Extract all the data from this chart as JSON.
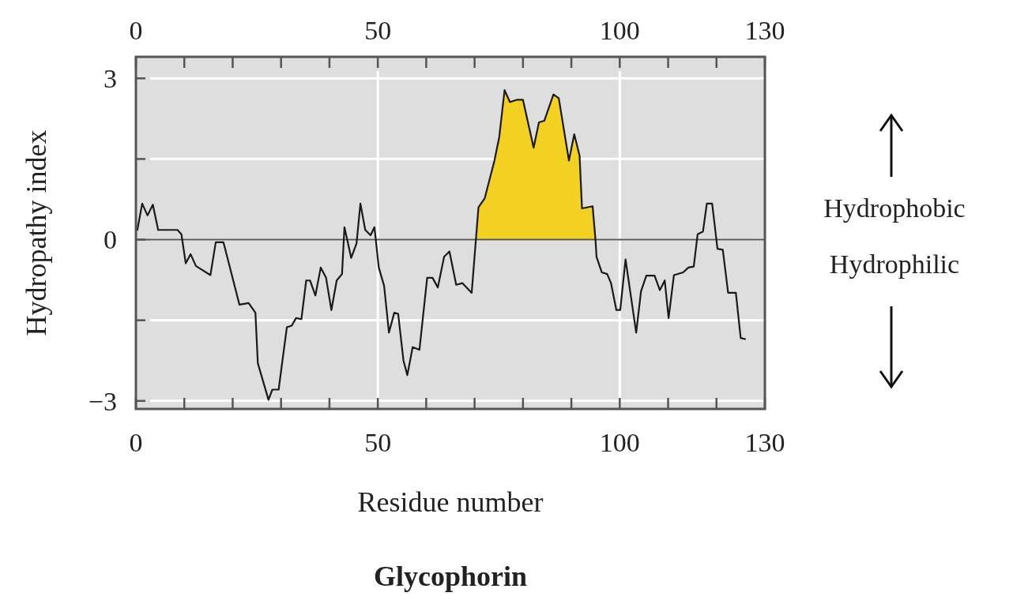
{
  "chart_data": {
    "type": "line",
    "title": "Glycophorin",
    "xlabel": "Residue number",
    "ylabel": "Hydropathy index",
    "annotations": [
      "Hydrophobic",
      "Hydrophilic"
    ],
    "xlim": [
      0,
      130
    ],
    "ylim": [
      -3.15,
      3.4
    ],
    "xticks": [
      0,
      {
        "value": 10,
        "label": null
      },
      {
        "value": 20,
        "label": null
      },
      {
        "value": 30,
        "label": null
      },
      {
        "value": 40,
        "label": null
      },
      50,
      {
        "value": 60,
        "label": null
      },
      {
        "value": 70,
        "label": null
      },
      {
        "value": 80,
        "label": null
      },
      {
        "value": 90,
        "label": null
      },
      100,
      {
        "value": 110,
        "label": null
      },
      {
        "value": 120,
        "label": null
      },
      130
    ],
    "x2lim": [
      0,
      130
    ],
    "x2ticks": [
      0,
      {
        "value": 10,
        "label": null
      },
      {
        "value": 20,
        "label": null
      },
      {
        "value": 30,
        "label": null
      },
      {
        "value": 40,
        "label": null
      },
      50,
      {
        "value": 60,
        "label": null
      },
      {
        "value": 70,
        "label": null
      },
      {
        "value": 80,
        "label": null
      },
      {
        "value": 90,
        "label": null
      },
      100,
      {
        "value": 110,
        "label": null
      },
      {
        "value": 120,
        "label": null
      },
      130
    ],
    "yticks": [
      -3,
      {
        "value": -1.5,
        "label": null
      },
      0,
      {
        "value": 1.5,
        "label": null
      },
      3
    ],
    "grid": true,
    "ref_lines": [
      {
        "axis": "y",
        "value": 0,
        "color": "#555555"
      }
    ],
    "series": [
      {
        "type": "area",
        "color": "#f2d123",
        "x": [
          70.3,
          70.8,
          72.1,
          74.1,
          75.1,
          76.2,
          77.3,
          78.7,
          80.0,
          82.2,
          83.3,
          84.4,
          86.3,
          87.4,
          89.5,
          90.6,
          91.7,
          92.2,
          94.4,
          95.0
        ],
        "values": [
          0,
          0.6,
          0.77,
          1.47,
          1.91,
          2.78,
          2.56,
          2.6,
          2.6,
          1.71,
          2.18,
          2.21,
          2.7,
          2.63,
          1.47,
          1.96,
          1.56,
          0.58,
          0.62,
          0
        ]
      },
      {
        "type": "line",
        "color": "#1a1a1a",
        "x": [
          0.3,
          1.3,
          2.4,
          3.5,
          4.6,
          8.6,
          9.4,
          10.3,
          11.3,
          12.4,
          15.4,
          16.5,
          18.1,
          21.4,
          23.3,
          24.7,
          25.2,
          27.4,
          28.2,
          29.5,
          31.2,
          32.2,
          33.1,
          34.2,
          35.2,
          36.0,
          37.1,
          38.2,
          39.3,
          40.4,
          41.5,
          42.6,
          43.1,
          44.5,
          45.6,
          46.4,
          47.4,
          48.5,
          49.3,
          50.2,
          51.3,
          52.3,
          53.4,
          54.2,
          55.3,
          56.1,
          57.2,
          58.6,
          60.2,
          61.3,
          62.4,
          63.7,
          64.8,
          66.2,
          67.5,
          69.4,
          70.8,
          72.1,
          74.1,
          75.1,
          76.2,
          77.3,
          78.7,
          80.0,
          82.2,
          83.3,
          84.4,
          86.3,
          87.4,
          89.5,
          90.6,
          91.7,
          92.2,
          94.4,
          95.0,
          95.2,
          96.3,
          97.4,
          98.2,
          99.3,
          100.1,
          101.2,
          103.4,
          104.4,
          105.5,
          107.2,
          108.3,
          109.3,
          110.1,
          111.2,
          113.1,
          114.2,
          115.3,
          116.1,
          117.2,
          118.0,
          119.1,
          120.2,
          121.3,
          122.4,
          124.0,
          125.0,
          125.9
        ],
        "values": [
          0.18,
          0.67,
          0.45,
          0.65,
          0.18,
          0.18,
          0.1,
          -0.44,
          -0.27,
          -0.49,
          -0.66,
          -0.05,
          -0.05,
          -1.21,
          -1.18,
          -1.36,
          -2.3,
          -2.98,
          -2.79,
          -2.79,
          -1.63,
          -1.6,
          -1.46,
          -1.48,
          -0.76,
          -0.76,
          -1.04,
          -0.52,
          -0.71,
          -1.31,
          -0.76,
          -0.64,
          0.23,
          -0.34,
          -0.07,
          0.67,
          0.18,
          0.08,
          0.23,
          -0.52,
          -0.86,
          -1.73,
          -1.36,
          -1.38,
          -2.25,
          -2.52,
          -2.0,
          -2.05,
          -0.71,
          -0.71,
          -0.89,
          -0.32,
          -0.22,
          -0.84,
          -0.81,
          -0.99,
          0.6,
          0.77,
          1.47,
          1.91,
          2.78,
          2.56,
          2.6,
          2.6,
          1.71,
          2.18,
          2.21,
          2.7,
          2.63,
          1.47,
          1.96,
          1.56,
          0.58,
          0.62,
          -0.02,
          -0.32,
          -0.61,
          -0.64,
          -0.81,
          -1.31,
          -1.31,
          -0.37,
          -1.73,
          -0.96,
          -0.67,
          -0.67,
          -0.94,
          -0.76,
          -1.46,
          -0.66,
          -0.61,
          -0.52,
          -0.5,
          0.1,
          0.15,
          0.67,
          0.67,
          -0.17,
          -0.19,
          -0.99,
          -0.99,
          -1.83,
          -1.85
        ]
      }
    ]
  }
}
